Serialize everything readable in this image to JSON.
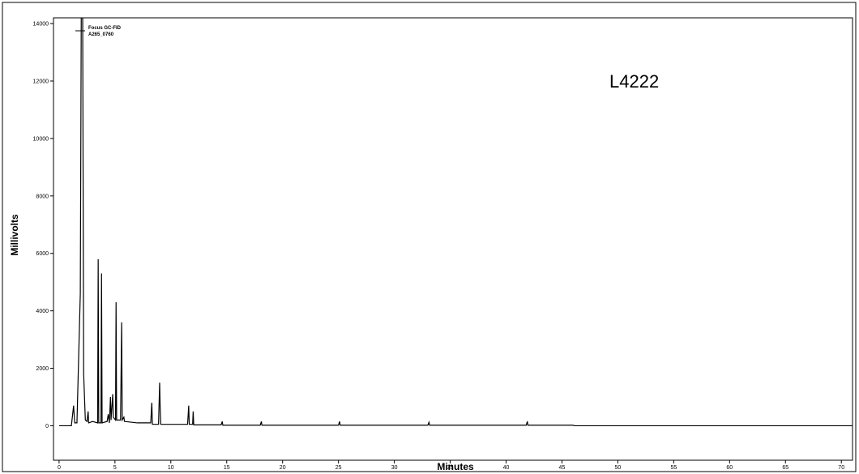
{
  "chart_data": {
    "type": "line",
    "annotation": "L4222",
    "xlabel": "Minutes",
    "ylabel": "Millivolts",
    "xlim": [
      -0.5,
      71
    ],
    "ylim": [
      -1200,
      14200
    ],
    "xticks": [
      0,
      5,
      10,
      15,
      20,
      25,
      30,
      35,
      40,
      45,
      50,
      55,
      60,
      65,
      70
    ],
    "yticks": [
      0,
      2000,
      4000,
      6000,
      8000,
      10000,
      12000,
      14000
    ],
    "series": [
      {
        "name": "Focus GC-FID",
        "subname": "A265_0760",
        "color": "#000000",
        "x": [
          0,
          1.1,
          1.3,
          1.4,
          1.6,
          1.9,
          2.0,
          2.1,
          2.2,
          2.35,
          2.5,
          2.6,
          2.65,
          3.0,
          3.45,
          3.5,
          3.55,
          3.75,
          3.8,
          3.85,
          4.3,
          4.4,
          4.5,
          4.6,
          4.65,
          4.8,
          4.85,
          5.05,
          5.1,
          5.15,
          5.5,
          5.6,
          5.65,
          5.8,
          5.85,
          7.0,
          8.2,
          8.3,
          8.35,
          8.9,
          9.0,
          9.05,
          9.1,
          11.5,
          11.6,
          11.65,
          11.95,
          12.0,
          12.05,
          14.5,
          14.6,
          14.65,
          18.0,
          18.1,
          18.15,
          25.0,
          25.1,
          25.15,
          33.0,
          33.1,
          33.15,
          41.8,
          41.9,
          41.95,
          46.0,
          46.1,
          71
        ],
        "values": [
          0,
          0,
          700,
          100,
          100,
          4600,
          16000,
          16000,
          1800,
          200,
          150,
          500,
          100,
          150,
          100,
          5800,
          100,
          100,
          5300,
          100,
          150,
          400,
          100,
          1000,
          200,
          1100,
          300,
          200,
          4300,
          200,
          200,
          3600,
          200,
          300,
          150,
          100,
          100,
          800,
          50,
          50,
          1500,
          600,
          50,
          50,
          700,
          50,
          50,
          500,
          30,
          30,
          150,
          20,
          20,
          150,
          20,
          20,
          150,
          20,
          20,
          120,
          20,
          20,
          150,
          20,
          20,
          0,
          0
        ]
      }
    ]
  }
}
